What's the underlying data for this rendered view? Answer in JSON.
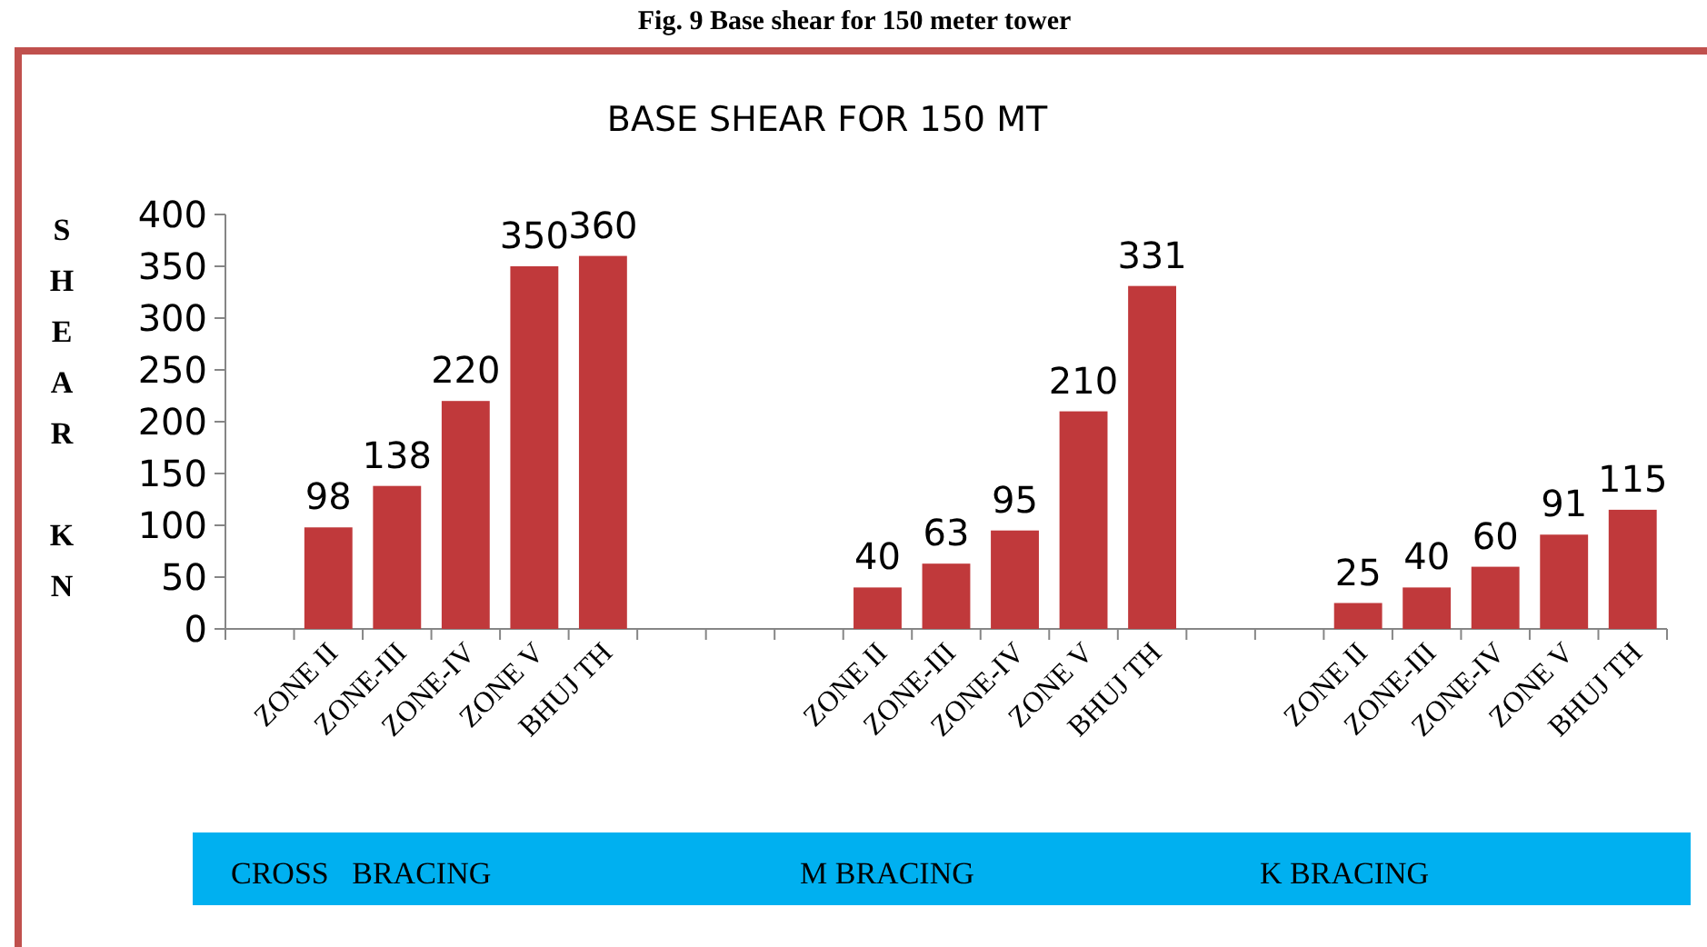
{
  "chart_data": {
    "type": "bar",
    "title": "BASE SHEAR FOR 150 MT",
    "ylabel": "SHEAR KN",
    "categories": [
      null,
      "ZONE II",
      "ZONE-III",
      "ZONE-IV",
      "ZONE V",
      "BHUJ TH",
      null,
      null,
      null,
      "ZONE II",
      "ZONE-III",
      "ZONE-IV",
      "ZONE V",
      "BHUJ TH",
      null,
      null,
      "ZONE II",
      "ZONE-III",
      "ZONE-IV",
      "ZONE V",
      "BHUJ TH"
    ],
    "values": [
      null,
      98,
      138,
      220,
      350,
      360,
      null,
      null,
      null,
      40,
      63,
      95,
      210,
      331,
      null,
      null,
      25,
      40,
      60,
      91,
      115
    ],
    "color": "#c0393b",
    "data_labels": true,
    "ylim": [
      0,
      400
    ],
    "yticks": [
      0,
      50,
      100,
      150,
      200,
      250,
      300,
      350,
      400
    ],
    "grid": false,
    "annotations": [
      "Fig. 9 Base shear for 150 meter tower",
      "CROSS   BRACING",
      "M BRACING",
      "K BRACING"
    ]
  }
}
